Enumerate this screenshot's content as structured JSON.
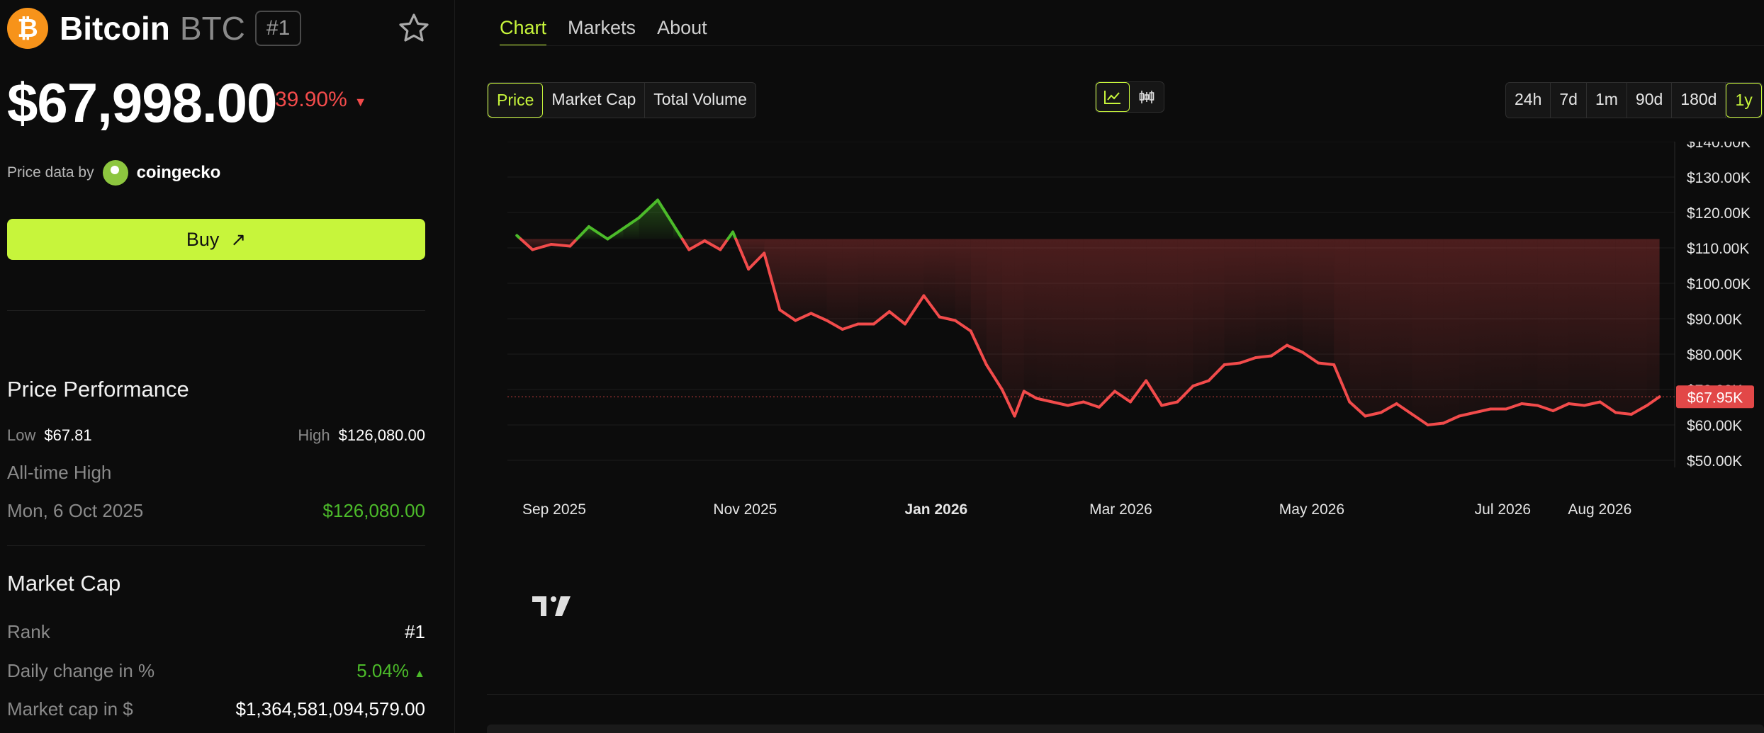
{
  "coin": {
    "name": "Bitcoin",
    "symbol": "BTC",
    "rank_badge": "#1",
    "logo_glyph": "₿",
    "price": "$67,998.00",
    "change": "39.90%",
    "change_arrow": "▼"
  },
  "price_data": {
    "label": "Price data by",
    "provider": "coingecko"
  },
  "buy": {
    "label": "Buy",
    "arrow": "↗"
  },
  "performance": {
    "title": "Price Performance",
    "low_label": "Low",
    "low_value": "$67.81",
    "high_label": "High",
    "high_value": "$126,080.00",
    "ath_label": "All-time High",
    "ath_date": "Mon, 6 Oct 2025",
    "ath_value": "$126,080.00"
  },
  "market_cap": {
    "title": "Market Cap",
    "rank_label": "Rank",
    "rank_value": "#1",
    "daily_label": "Daily change in %",
    "daily_value": "5.04%",
    "daily_arrow": "▲",
    "cap_label": "Market cap in $",
    "cap_value": "$1,364,581,094,579.00"
  },
  "tabs": [
    {
      "label": "Chart",
      "active": true
    },
    {
      "label": "Markets",
      "active": false
    },
    {
      "label": "About",
      "active": false
    }
  ],
  "metric_tabs": [
    {
      "label": "Price",
      "active": true
    },
    {
      "label": "Market Cap",
      "active": false
    },
    {
      "label": "Total Volume",
      "active": false
    }
  ],
  "chart_types": [
    {
      "icon": "line-chart-icon",
      "active": true
    },
    {
      "icon": "candlestick-icon",
      "active": false
    }
  ],
  "ranges": [
    {
      "label": "24h",
      "active": false
    },
    {
      "label": "7d",
      "active": false
    },
    {
      "label": "1m",
      "active": false
    },
    {
      "label": "90d",
      "active": false
    },
    {
      "label": "180d",
      "active": false
    },
    {
      "label": "1y",
      "active": true
    }
  ],
  "colors": {
    "accent": "#c7f53b",
    "up": "#4cbb2a",
    "down": "#f24b4b",
    "btc": "#f7931a"
  },
  "chart_data": {
    "type": "line",
    "title": "",
    "xlabel": "",
    "ylabel": "",
    "ylim": [
      50000,
      140000
    ],
    "y_ticks": [
      "$50.00K",
      "$60.00K",
      "$70.00K",
      "$80.00K",
      "$90.00K",
      "$100.00K",
      "$110.00K",
      "$120.00K",
      "$130.00K",
      "$140.00K"
    ],
    "y_tick_values": [
      50000,
      60000,
      70000,
      80000,
      90000,
      100000,
      110000,
      120000,
      130000,
      140000
    ],
    "x_ticks": [
      {
        "label": "Sep 2025",
        "date": "2025-09-01"
      },
      {
        "label": "Nov 2025",
        "date": "2025-11-01"
      },
      {
        "label": "Jan 2026",
        "date": "2026-01-01"
      },
      {
        "label": "Mar 2026",
        "date": "2026-03-01"
      },
      {
        "label": "May 2026",
        "date": "2026-05-01"
      },
      {
        "label": "Jul 2026",
        "date": "2026-07-01"
      },
      {
        "label": "Aug 2026",
        "date": "2026-08-01"
      }
    ],
    "baseline": 112500,
    "current_label": "$67.95K",
    "current_value": 67950,
    "grid": true,
    "series": [
      {
        "x": [
          "2025-08-28",
          "2025-09-02",
          "2025-09-08",
          "2025-09-14",
          "2025-09-20",
          "2025-09-26",
          "2025-10-01",
          "2025-10-06",
          "2025-10-12",
          "2025-10-17",
          "2025-10-22",
          "2025-10-27",
          "2025-11-01",
          "2025-11-05",
          "2025-11-10",
          "2025-11-15",
          "2025-11-20",
          "2025-11-25",
          "2025-11-30",
          "2025-12-05",
          "2025-12-10",
          "2025-12-15",
          "2025-12-20",
          "2025-12-25",
          "2025-12-30",
          "2026-01-05",
          "2026-01-10",
          "2026-01-15",
          "2026-01-20",
          "2026-01-25",
          "2026-01-30",
          "2026-02-03",
          "2026-02-06",
          "2026-02-10",
          "2026-02-15",
          "2026-02-20",
          "2026-02-25",
          "2026-03-02",
          "2026-03-07",
          "2026-03-12",
          "2026-03-17",
          "2026-03-22",
          "2026-03-27",
          "2026-04-01",
          "2026-04-06",
          "2026-04-11",
          "2026-04-16",
          "2026-04-21",
          "2026-04-26",
          "2026-05-01",
          "2026-05-06",
          "2026-05-11",
          "2026-05-16",
          "2026-05-21",
          "2026-05-26",
          "2026-05-31",
          "2026-06-05",
          "2026-06-10",
          "2026-06-15",
          "2026-06-20",
          "2026-06-25",
          "2026-06-30",
          "2026-07-05",
          "2026-07-10",
          "2026-07-15",
          "2026-07-20",
          "2026-07-25",
          "2026-07-30",
          "2026-08-04",
          "2026-08-09",
          "2026-08-14",
          "2026-08-19",
          "2026-08-24",
          "2026-08-28"
        ],
        "values": [
          113500,
          109500,
          111000,
          110500,
          116000,
          112500,
          115500,
          118500,
          123500,
          116500,
          109500,
          112000,
          109500,
          114500,
          104000,
          108500,
          92500,
          89500,
          91500,
          89500,
          87000,
          88500,
          88500,
          92000,
          88500,
          96500,
          90500,
          89500,
          86500,
          77000,
          70000,
          62500,
          69500,
          67500,
          66500,
          65500,
          66500,
          65000,
          69500,
          66500,
          72500,
          65500,
          66500,
          71000,
          72500,
          77000,
          77500,
          79000,
          79500,
          82500,
          80500,
          77500,
          77000,
          66500,
          62500,
          63500,
          66000,
          63000,
          60000,
          60500,
          62500,
          63500,
          64500,
          64500,
          66000,
          65500,
          64000,
          66000,
          65500,
          66500,
          63500,
          63000,
          65500,
          67950
        ]
      }
    ]
  }
}
